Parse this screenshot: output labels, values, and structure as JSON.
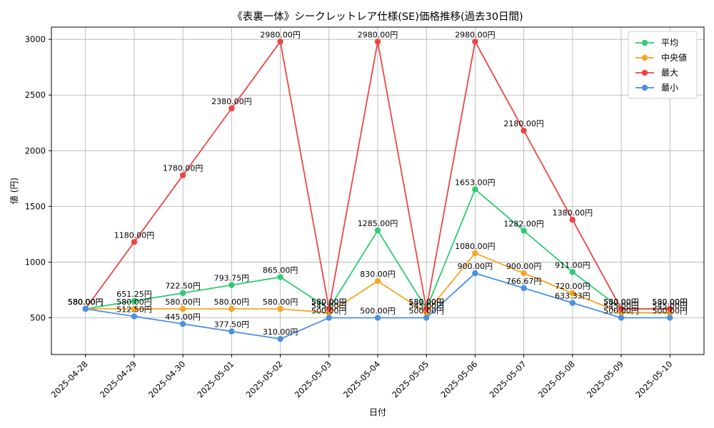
{
  "chart_data": {
    "type": "line",
    "title": "《表裏一体》シークレットレア仕様(SE)価格推移(過去30日間)",
    "xlabel": "日付",
    "ylabel": "値 (円)",
    "categories": [
      "2025-04-28",
      "2025-04-29",
      "2025-04-30",
      "2025-05-01",
      "2025-05-02",
      "2025-05-03",
      "2025-05-04",
      "2025-05-05",
      "2025-05-06",
      "2025-05-07",
      "2025-05-08",
      "2025-05-09",
      "2025-05-10"
    ],
    "ylim": [
      170,
      3110
    ],
    "yticks": [
      500,
      1000,
      1500,
      2000,
      2500,
      3000
    ],
    "grid": true,
    "legend_position": "top-right",
    "series": [
      {
        "name": "平均",
        "color": "#2ecc71",
        "values": [
          580,
          651.25,
          722.5,
          793.75,
          865,
          580,
          1285,
          580,
          1653,
          1282,
          911,
          580,
          580
        ],
        "labels": [
          "580.00円",
          "651.25円",
          "722.50円",
          "793.75円",
          "865.00円",
          "580.00円",
          "1285.00円",
          "580.00円",
          "1653.00円",
          "1282.00円",
          "911.00円",
          "580.00円",
          "580.00円"
        ]
      },
      {
        "name": "中央値",
        "color": "#f5a623",
        "values": [
          580,
          580,
          580,
          580,
          580,
          545,
          830,
          545,
          1080,
          900,
          720,
          545,
          545
        ],
        "labels": [
          "580.00円",
          "580.00円",
          "580.00円",
          "580.00円",
          "580.00円",
          "545.00円",
          "830.00円",
          "545.00円",
          "1080.00円",
          "900.00円",
          "720.00円",
          "545.00円",
          "545.00円"
        ]
      },
      {
        "name": "最大",
        "color": "#ef4444",
        "values": [
          580,
          1180,
          1780,
          2380,
          2980,
          580,
          2980,
          580,
          2980,
          2180,
          1380,
          580,
          580
        ],
        "labels": [
          "580.00円",
          "1180.00円",
          "1780.00円",
          "2380.00円",
          "2980.00円",
          "580.00円",
          "2980.00円",
          "580.00円",
          "2980.00円",
          "2180.00円",
          "1380.00円",
          "580.00円",
          "580.00円"
        ]
      },
      {
        "name": "最小",
        "color": "#4a90e2",
        "values": [
          580,
          512.5,
          445,
          377.5,
          310,
          500,
          500,
          500,
          900,
          766.67,
          633.33,
          500,
          500
        ],
        "labels": [
          "580.00円",
          "512.50円",
          "445.00円",
          "377.50円",
          "310.00円",
          "500.00円",
          "500.00円",
          "500.00円",
          "900.00円",
          "766.67円",
          "633.33円",
          "500.00円",
          "500.00円"
        ]
      }
    ]
  }
}
